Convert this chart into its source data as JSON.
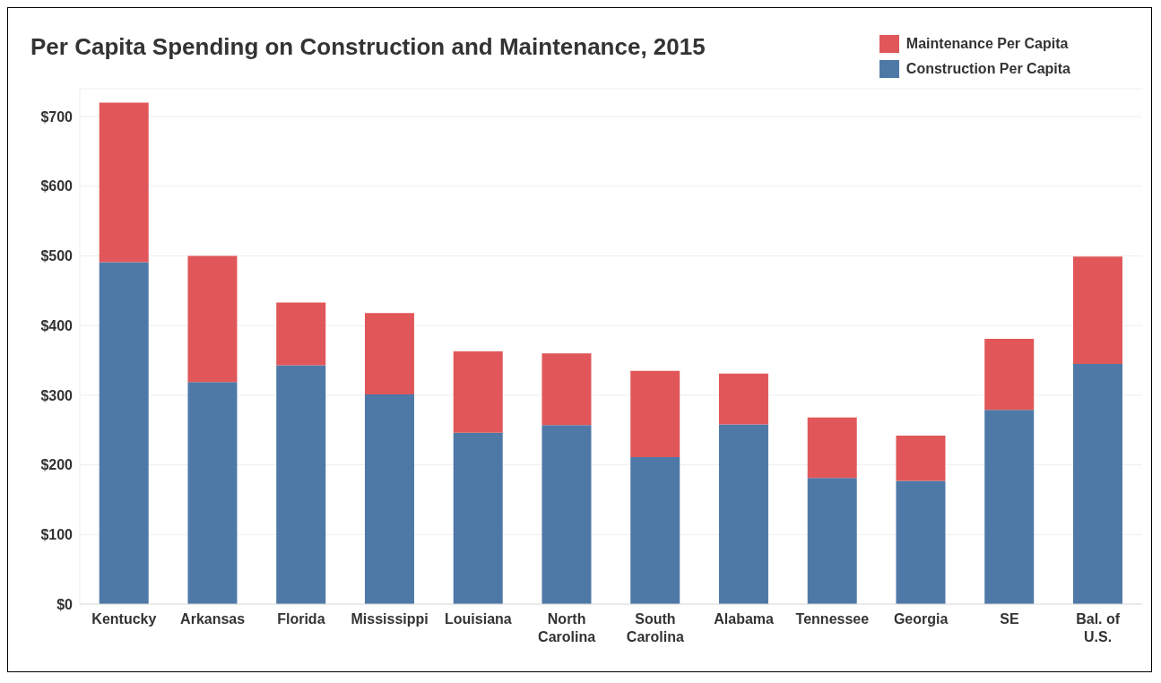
{
  "chart_data": {
    "type": "bar",
    "title": "Per Capita Spending on Construction and Maintenance, 2015",
    "categories": [
      "Kentucky",
      "Arkansas",
      "Florida",
      "Mississippi",
      "Louisiana",
      "North Carolina",
      "South Carolina",
      "Alabama",
      "Tennessee",
      "Georgia",
      "SE",
      "Bal. of U.S."
    ],
    "stacked": true,
    "series": [
      {
        "name": "Construction Per Capita",
        "color": "#4e79a7",
        "values": [
          491,
          319,
          343,
          301,
          246,
          257,
          211,
          258,
          181,
          177,
          279,
          345
        ]
      },
      {
        "name": "Maintenance Per Capita",
        "color": "#e15759",
        "values": [
          229,
          181,
          90,
          117,
          117,
          103,
          124,
          73,
          87,
          65,
          102,
          154
        ]
      }
    ],
    "ylim": [
      0,
      740
    ],
    "yticks": [
      {
        "value": 0,
        "label": "$0"
      },
      {
        "value": 100,
        "label": "$100"
      },
      {
        "value": 200,
        "label": "$200"
      },
      {
        "value": 300,
        "label": "$300"
      },
      {
        "value": 400,
        "label": "$400"
      },
      {
        "value": 500,
        "label": "$500"
      },
      {
        "value": 600,
        "label": "$600"
      },
      {
        "value": 700,
        "label": "$700"
      }
    ],
    "grid": "y",
    "legend": "top right"
  }
}
